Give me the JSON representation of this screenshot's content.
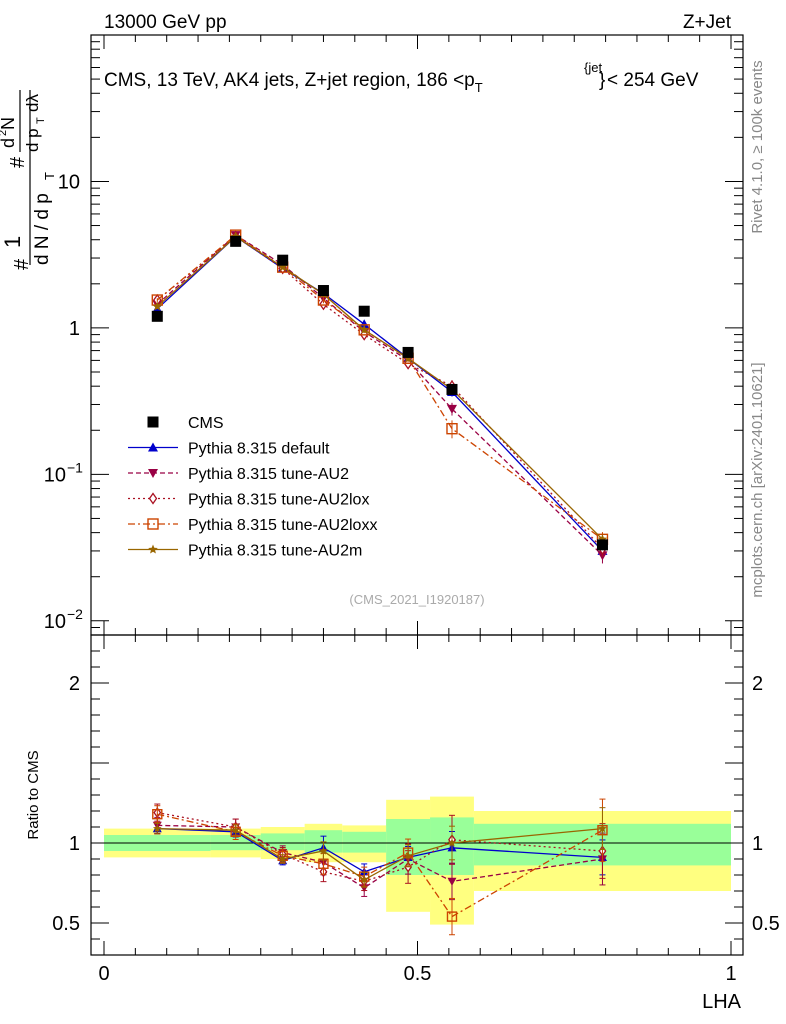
{
  "header": {
    "left": "13000 GeV pp",
    "right": "Z+Jet"
  },
  "side_labels": {
    "rivet": "Rivet 4.1.0, ≥ 100k events",
    "mcplots": "mcplots.cern.ch [arXiv:2401.10621]"
  },
  "chart_data": {
    "type": "line",
    "title": "CMS, 13 TeV, AK4 jets, Z+jet region, 186 <p_T^{jet}< 254 GeV",
    "title_parts": {
      "pre": "CMS, 13 TeV, AK4 jets, Z+jet region, 186 <p",
      "sub": "T",
      "sup": "{jet",
      "sup_close": "}",
      "post": "< 254 GeV"
    },
    "analysis_id": "(CMS_2021_I1920187)",
    "xlabel": "LHA",
    "ylabel_main": "1/dN/dp_T  d²N/dp_T dλ",
    "ylabel_ratio": "Ratio to CMS",
    "x_range": [
      0,
      1
    ],
    "y_range": [
      0.008,
      100
    ],
    "y_scale": "log",
    "ratio_range": [
      0.3,
      2.3
    ],
    "x_ticks": [
      0,
      0.5,
      1
    ],
    "x_tick_labels": [
      "0",
      "0.5",
      "1"
    ],
    "y_major_ticks": [
      0.01,
      0.1,
      1,
      10
    ],
    "y_tick_labels": [
      {
        "base": "10",
        "exp": "−2"
      },
      {
        "base": "10",
        "exp": "−1"
      },
      {
        "base": "1",
        "exp": ""
      },
      {
        "base": "10",
        "exp": ""
      }
    ],
    "ratio_ticks": [
      0.5,
      1,
      2
    ],
    "ratio_tick_labels": [
      "0.5",
      "1",
      "2"
    ],
    "bin_edges": [
      0.0,
      0.17,
      0.25,
      0.32,
      0.38,
      0.45,
      0.52,
      0.59,
      1.0
    ],
    "data": {
      "name": "CMS",
      "x": [
        0.085,
        0.21,
        0.285,
        0.35,
        0.415,
        0.485,
        0.555,
        0.795
      ],
      "y": [
        1.2,
        3.9,
        2.9,
        1.8,
        1.3,
        0.68,
        0.38,
        0.033
      ],
      "band_green": [
        [
          0.95,
          1.05
        ],
        [
          0.955,
          1.05
        ],
        [
          0.955,
          1.06
        ],
        [
          0.94,
          1.08
        ],
        [
          0.94,
          1.07
        ],
        [
          0.8,
          1.15
        ],
        [
          0.8,
          1.16
        ],
        [
          0.86,
          1.12
        ]
      ],
      "band_yellow": [
        [
          0.91,
          1.09
        ],
        [
          0.91,
          1.09
        ],
        [
          0.9,
          1.1
        ],
        [
          0.88,
          1.12
        ],
        [
          0.88,
          1.11
        ],
        [
          0.57,
          1.27
        ],
        [
          0.49,
          1.29
        ],
        [
          0.7,
          1.2
        ]
      ]
    },
    "series": [
      {
        "name": "Pythia 8.315 default",
        "color": "#0000cc",
        "dash": "",
        "marker": "triangle-up",
        "x": [
          0.085,
          0.21,
          0.285,
          0.35,
          0.415,
          0.485,
          0.555,
          0.795
        ],
        "y": [
          1.35,
          4.2,
          2.55,
          1.72,
          1.06,
          0.62,
          0.365,
          0.03
        ],
        "ratio": [
          1.09,
          1.07,
          0.89,
          0.97,
          0.82,
          0.91,
          0.97,
          0.91
        ],
        "err": [
          0.02,
          0.02,
          0.02,
          0.05,
          0.04,
          0.05,
          0.07,
          0.08
        ]
      },
      {
        "name": "Pythia 8.315 tune-AU2",
        "color": "#990044",
        "dash": "5,3",
        "marker": "triangle-down",
        "x": [
          0.085,
          0.21,
          0.285,
          0.35,
          0.415,
          0.485,
          0.555,
          0.795
        ],
        "y": [
          1.45,
          4.3,
          2.7,
          1.6,
          0.94,
          0.6,
          0.28,
          0.028
        ],
        "ratio": [
          1.11,
          1.1,
          0.94,
          0.88,
          0.72,
          0.9,
          0.76,
          0.9
        ],
        "err": [
          0.03,
          0.03,
          0.03,
          0.06,
          0.05,
          0.07,
          0.1,
          0.12
        ]
      },
      {
        "name": "Pythia 8.315 tune-AU2lox",
        "color": "#aa1122",
        "dash": "2,3",
        "marker": "diamond",
        "x": [
          0.085,
          0.21,
          0.285,
          0.35,
          0.415,
          0.485,
          0.555,
          0.795
        ],
        "y": [
          1.55,
          4.2,
          2.55,
          1.45,
          0.9,
          0.57,
          0.4,
          0.031
        ],
        "ratio": [
          1.19,
          1.1,
          0.93,
          0.82,
          0.76,
          0.85,
          1.02,
          0.95
        ],
        "err": [
          0.03,
          0.03,
          0.03,
          0.05,
          0.05,
          0.08,
          0.1,
          0.12
        ]
      },
      {
        "name": "Pythia 8.315 tune-AU2loxx",
        "color": "#cc4400",
        "dash": "7,3,2,3",
        "marker": "square-open",
        "x": [
          0.085,
          0.21,
          0.285,
          0.35,
          0.415,
          0.485,
          0.555,
          0.795
        ],
        "y": [
          1.55,
          4.3,
          2.6,
          1.55,
          0.97,
          0.62,
          0.205,
          0.036
        ],
        "ratio": [
          1.18,
          1.07,
          0.92,
          0.87,
          0.79,
          0.94,
          0.54,
          1.08
        ],
        "err": [
          0.03,
          0.03,
          0.03,
          0.05,
          0.05,
          0.06,
          0.14,
          0.12
        ]
      },
      {
        "name": "Pythia 8.315 tune-AU2m",
        "color": "#996600",
        "dash": "",
        "marker": "star",
        "x": [
          0.085,
          0.21,
          0.285,
          0.35,
          0.415,
          0.485,
          0.555,
          0.795
        ],
        "y": [
          1.4,
          4.2,
          2.6,
          1.7,
          0.97,
          0.62,
          0.38,
          0.036
        ],
        "ratio": [
          1.09,
          1.08,
          0.9,
          0.95,
          0.77,
          0.92,
          1.0,
          1.09
        ],
        "err": [
          0.02,
          0.02,
          0.02,
          0.04,
          0.04,
          0.05,
          0.07,
          0.08
        ]
      }
    ],
    "legend_position": "center-left"
  }
}
